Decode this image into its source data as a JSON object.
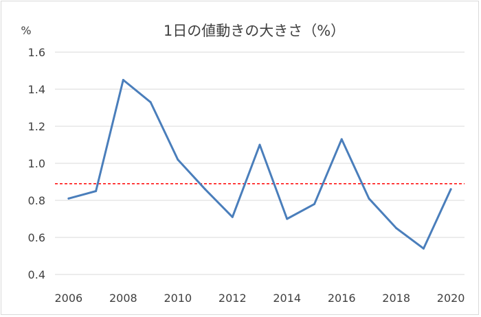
{
  "chart_data": {
    "type": "line",
    "title": "1日の値動きの大きさ（%）",
    "xlabel": "",
    "ylabel": "%",
    "x": [
      2006,
      2007,
      2008,
      2009,
      2010,
      2011,
      2012,
      2013,
      2014,
      2015,
      2016,
      2017,
      2018,
      2019,
      2020
    ],
    "x_tick_labels": [
      "2006",
      "2008",
      "2010",
      "2012",
      "2014",
      "2016",
      "2018",
      "2020"
    ],
    "y_tick_labels": [
      "0.4",
      "0.6",
      "0.8",
      "1.0",
      "1.2",
      "1.4",
      "1.6"
    ],
    "ylim": [
      0.4,
      1.6
    ],
    "grid": true,
    "series": [
      {
        "values": [
          0.81,
          0.85,
          1.45,
          1.33,
          1.02,
          0.86,
          0.71,
          1.1,
          0.7,
          0.78,
          1.13,
          0.81,
          0.65,
          0.54,
          0.86
        ],
        "color": "#4a7ebb"
      }
    ],
    "reference_line": {
      "value": 0.89,
      "color": "#ff0000",
      "style": "dashed"
    }
  }
}
